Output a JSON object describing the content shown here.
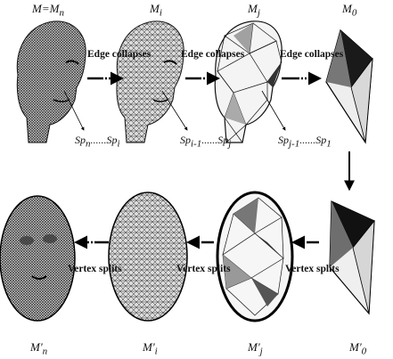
{
  "labels": {
    "m_top_0": "M=M",
    "m_top_0_sub": "n",
    "m_top_1": "M",
    "m_top_1_sub": "i",
    "m_top_2": "M",
    "m_top_2_sub": "j",
    "m_top_3": "M",
    "m_top_3_sub": "0",
    "m_bot_0": "M'",
    "m_bot_0_sub": "n",
    "m_bot_1": "M'",
    "m_bot_1_sub": "i",
    "m_bot_2": "M'",
    "m_bot_2_sub": "j",
    "m_bot_3": "M'",
    "m_bot_3_sub": "0"
  },
  "edge_collapses": "Edge collapses",
  "vertex_splits": "Vertex splits",
  "seq_1": "Sp",
  "seq_1_sub_a": "n",
  "seq_1_mid": "......",
  "seq_1_b": "Sp",
  "seq_1_sub_b": "i",
  "seq_2": "Sp",
  "seq_2_sub_a": "i-1",
  "seq_2_mid": "......",
  "seq_2_b": "Sp",
  "seq_2_sub_b": "j",
  "seq_3": "Sp",
  "seq_3_sub_a": "j-1",
  "seq_3_mid": "......",
  "seq_3_b": "Sp",
  "seq_3_sub_b": "1"
}
